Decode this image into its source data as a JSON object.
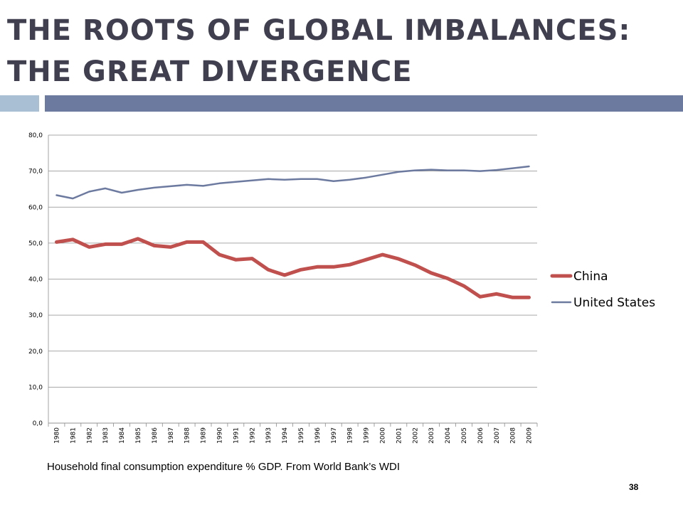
{
  "slide": {
    "title_line1": "THE ROOTS OF GLOBAL IMBALANCES:",
    "title_line2": "THE GREAT DIVERGENCE",
    "caption": "Household final consumption expenditure % GDP. From World Bank’s WDI",
    "slide_number": "38",
    "colors": {
      "title": "#3f3f4f",
      "bar_left": "#a8bfd4",
      "bar_right": "#6d7aa0"
    }
  },
  "chart_data": {
    "type": "line",
    "title": "",
    "xlabel": "",
    "ylabel": "",
    "x": [
      "1980",
      "1981",
      "1982",
      "1983",
      "1984",
      "1985",
      "1986",
      "1987",
      "1988",
      "1989",
      "1990",
      "1991",
      "1992",
      "1993",
      "1994",
      "1995",
      "1996",
      "1997",
      "1998",
      "1999",
      "2000",
      "2001",
      "2002",
      "2003",
      "2004",
      "2005",
      "2006",
      "2007",
      "2008",
      "2009"
    ],
    "ylim": [
      0,
      80
    ],
    "yticks": [
      0,
      10,
      20,
      30,
      40,
      50,
      60,
      70,
      80
    ],
    "ytick_labels": [
      "0,0",
      "10,0",
      "20,0",
      "30,0",
      "40,0",
      "50,0",
      "60,0",
      "70,0",
      "80,0"
    ],
    "grid": true,
    "legend_position": "right",
    "series": [
      {
        "name": "China",
        "color": "#c0504d",
        "values": [
          50.3,
          51.0,
          48.9,
          49.7,
          49.7,
          51.2,
          49.3,
          48.9,
          50.3,
          50.3,
          46.8,
          45.4,
          45.7,
          42.6,
          41.1,
          42.6,
          43.4,
          43.4,
          44.0,
          45.4,
          46.8,
          45.6,
          43.9,
          41.7,
          40.2,
          38.1,
          35.1,
          35.9,
          34.9,
          34.9
        ]
      },
      {
        "name": "United States",
        "color": "#6d7aa0",
        "values": [
          63.3,
          62.4,
          64.3,
          65.2,
          64.0,
          64.8,
          65.4,
          65.8,
          66.2,
          65.9,
          66.6,
          67.0,
          67.4,
          67.8,
          67.6,
          67.8,
          67.8,
          67.2,
          67.6,
          68.2,
          69.0,
          69.8,
          70.2,
          70.4,
          70.2,
          70.2,
          70.0,
          70.3,
          70.8,
          71.3
        ]
      }
    ]
  }
}
